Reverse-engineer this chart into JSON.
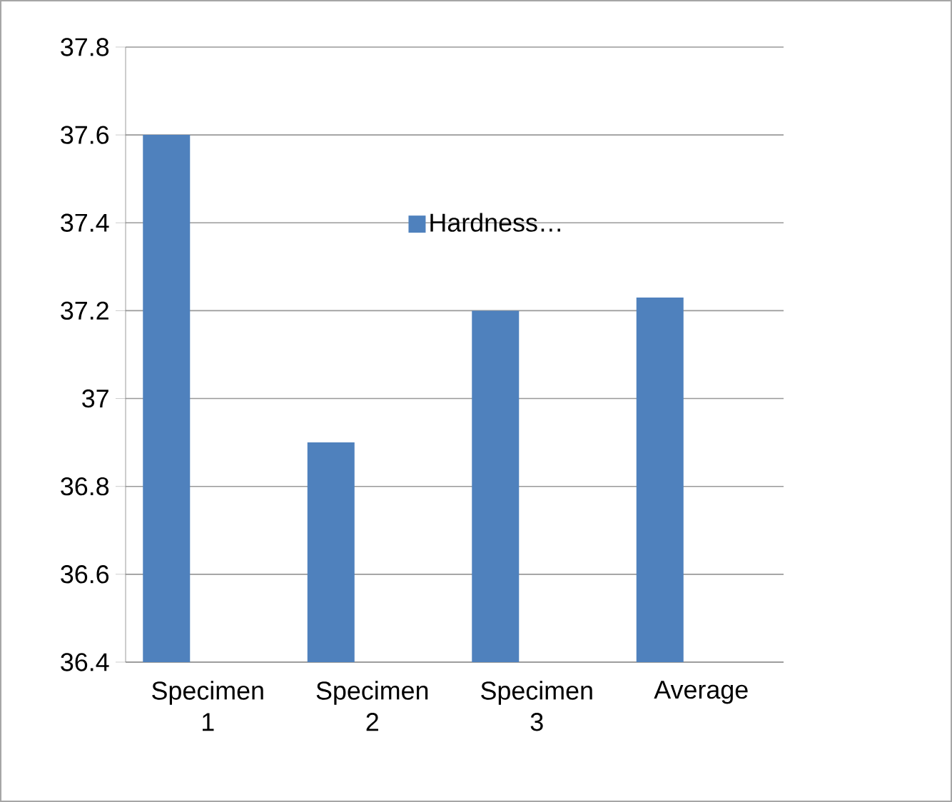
{
  "chart_data": {
    "type": "bar",
    "categories": [
      "Specimen 1",
      "Specimen 2",
      "Specimen 3",
      "Average"
    ],
    "series": [
      {
        "name": "Hardness…",
        "color": "#4f81bd",
        "values": [
          37.6,
          36.9,
          37.2,
          37.23
        ]
      }
    ],
    "ylim": [
      36.4,
      37.8
    ],
    "yticks": [
      36.4,
      36.6,
      36.8,
      37,
      37.2,
      37.4,
      37.6,
      37.8
    ],
    "grid": "y",
    "legend": "top"
  }
}
